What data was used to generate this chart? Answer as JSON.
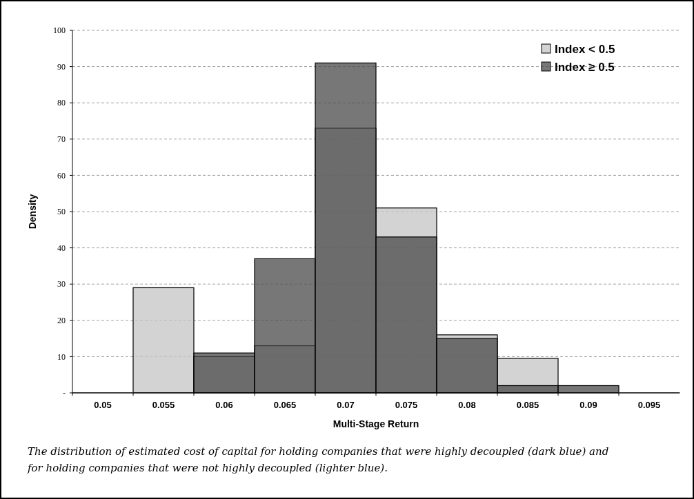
{
  "chart_data": {
    "type": "bar",
    "xlabel": "Multi-Stage Return",
    "ylabel": "Density",
    "categories": [
      "0.05",
      "0.055",
      "0.06",
      "0.065",
      "0.07",
      "0.075",
      "0.08",
      "0.085",
      "0.09",
      "0.095"
    ],
    "series": [
      {
        "name": "Index < 0.5",
        "color": "#c4c4c4",
        "values": [
          0,
          29,
          10,
          13,
          73,
          51,
          16,
          9.5,
          0,
          0
        ]
      },
      {
        "name": "Index ≥ 0.5",
        "color": "#4a4a4a",
        "values": [
          0,
          0,
          11,
          37,
          91,
          43,
          15,
          2,
          2,
          0
        ]
      }
    ],
    "ylim": [
      0,
      100
    ],
    "yticks": [
      {
        "value": 0,
        "label": "-"
      },
      10,
      20,
      30,
      40,
      50,
      60,
      70,
      80,
      90,
      100
    ],
    "grid": "y",
    "legend": "top right",
    "annotations": [
      "The distribution of estimated cost of capital for holding companies that were highly decoupled (dark blue) and for holding companies that were not highly decoupled (lighter blue)."
    ]
  }
}
